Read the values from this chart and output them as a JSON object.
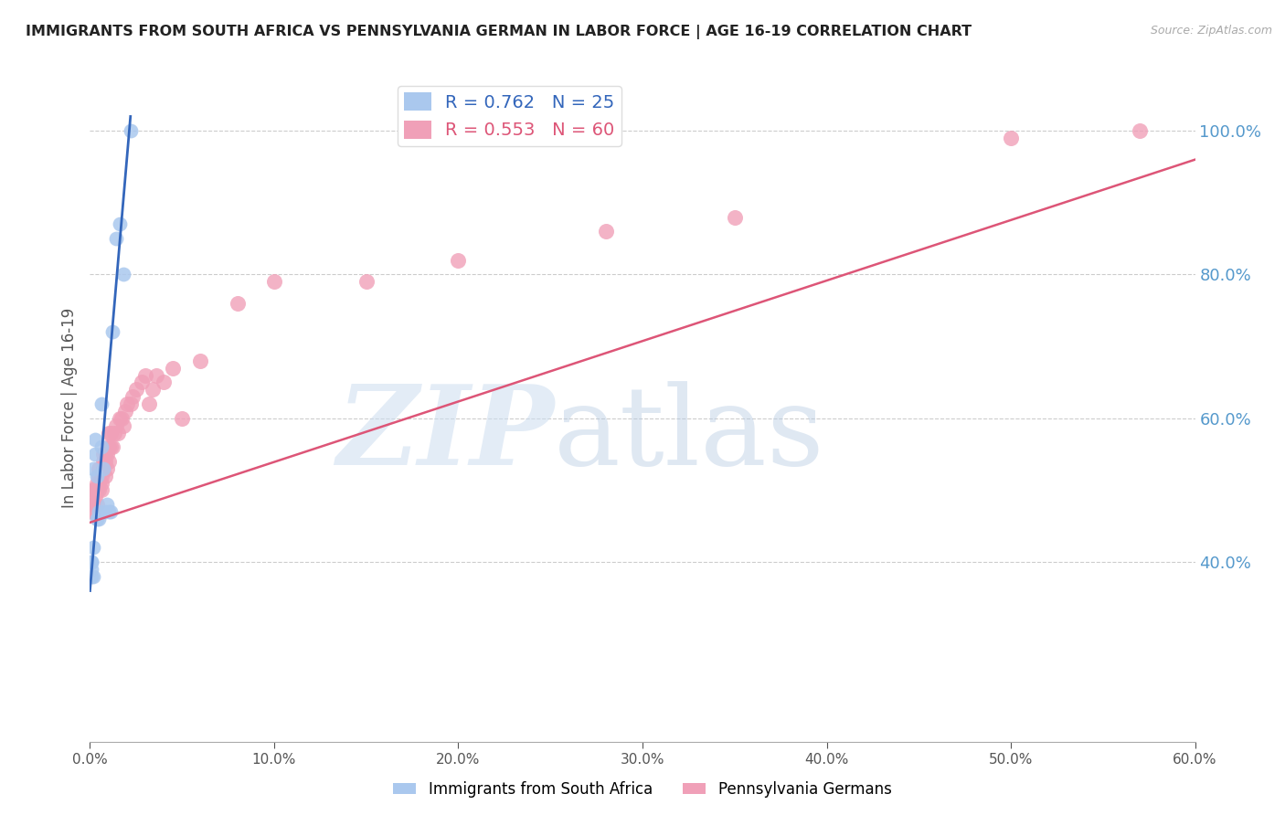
{
  "title": "IMMIGRANTS FROM SOUTH AFRICA VS PENNSYLVANIA GERMAN IN LABOR FORCE | AGE 16-19 CORRELATION CHART",
  "source": "Source: ZipAtlas.com",
  "ylabel": "In Labor Force | Age 16-19",
  "xlim": [
    0.0,
    0.6
  ],
  "ylim": [
    0.15,
    1.08
  ],
  "blue_R": 0.762,
  "blue_N": 25,
  "pink_R": 0.553,
  "pink_N": 60,
  "blue_label": "Immigrants from South Africa",
  "pink_label": "Pennsylvania Germans",
  "blue_color": "#aac8ee",
  "pink_color": "#f0a0b8",
  "blue_line_color": "#3366bb",
  "pink_line_color": "#dd5577",
  "right_axis_color": "#5599cc",
  "yticks_right": [
    0.4,
    0.6,
    0.8,
    1.0
  ],
  "xticks": [
    0.0,
    0.1,
    0.2,
    0.3,
    0.4,
    0.5,
    0.6
  ],
  "blue_x": [
    0.001,
    0.001,
    0.001,
    0.001,
    0.002,
    0.002,
    0.002,
    0.003,
    0.003,
    0.004,
    0.004,
    0.005,
    0.005,
    0.006,
    0.006,
    0.007,
    0.008,
    0.009,
    0.01,
    0.011,
    0.012,
    0.014,
    0.016,
    0.018,
    0.022
  ],
  "blue_y": [
    0.38,
    0.39,
    0.4,
    0.4,
    0.38,
    0.42,
    0.53,
    0.55,
    0.57,
    0.46,
    0.52,
    0.46,
    0.47,
    0.56,
    0.62,
    0.53,
    0.47,
    0.48,
    0.47,
    0.47,
    0.72,
    0.85,
    0.87,
    0.8,
    1.0
  ],
  "pink_x": [
    0.001,
    0.001,
    0.002,
    0.002,
    0.002,
    0.003,
    0.003,
    0.003,
    0.004,
    0.004,
    0.004,
    0.005,
    0.005,
    0.005,
    0.005,
    0.006,
    0.006,
    0.006,
    0.007,
    0.007,
    0.007,
    0.008,
    0.008,
    0.008,
    0.009,
    0.009,
    0.01,
    0.01,
    0.01,
    0.011,
    0.011,
    0.012,
    0.013,
    0.014,
    0.015,
    0.016,
    0.017,
    0.018,
    0.019,
    0.02,
    0.022,
    0.023,
    0.025,
    0.028,
    0.03,
    0.032,
    0.034,
    0.036,
    0.04,
    0.045,
    0.05,
    0.06,
    0.08,
    0.1,
    0.15,
    0.2,
    0.28,
    0.35,
    0.5,
    0.57
  ],
  "pink_y": [
    0.47,
    0.49,
    0.47,
    0.48,
    0.5,
    0.49,
    0.5,
    0.5,
    0.48,
    0.5,
    0.51,
    0.5,
    0.51,
    0.52,
    0.53,
    0.5,
    0.51,
    0.52,
    0.53,
    0.54,
    0.55,
    0.52,
    0.54,
    0.55,
    0.53,
    0.55,
    0.54,
    0.56,
    0.58,
    0.56,
    0.58,
    0.56,
    0.58,
    0.59,
    0.58,
    0.6,
    0.6,
    0.59,
    0.61,
    0.62,
    0.62,
    0.63,
    0.64,
    0.65,
    0.66,
    0.62,
    0.64,
    0.66,
    0.65,
    0.67,
    0.6,
    0.68,
    0.76,
    0.79,
    0.79,
    0.82,
    0.86,
    0.88,
    0.99,
    1.0
  ],
  "blue_line_x0": 0.0,
  "blue_line_y0": 0.36,
  "blue_line_x1": 0.022,
  "blue_line_y1": 1.02,
  "pink_line_x0": 0.0,
  "pink_line_y0": 0.455,
  "pink_line_x1": 0.6,
  "pink_line_y1": 0.96
}
